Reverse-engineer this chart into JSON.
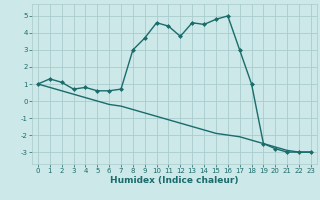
{
  "title": "",
  "xlabel": "Humidex (Indice chaleur)",
  "xlim": [
    -0.5,
    23.5
  ],
  "ylim": [
    -3.7,
    5.7
  ],
  "xticks": [
    0,
    1,
    2,
    3,
    4,
    5,
    6,
    7,
    8,
    9,
    10,
    11,
    12,
    13,
    14,
    15,
    16,
    17,
    18,
    19,
    20,
    21,
    22,
    23
  ],
  "yticks": [
    -3,
    -2,
    -1,
    0,
    1,
    2,
    3,
    4,
    5
  ],
  "bg_color": "#cce8e8",
  "grid_color": "#aacccc",
  "line_color": "#1a6b6b",
  "line1_x": [
    0,
    1,
    2,
    3,
    4,
    5,
    6,
    7,
    8,
    9,
    10,
    11,
    12,
    13,
    14,
    15,
    16,
    17,
    18,
    19,
    20,
    21,
    22,
    23
  ],
  "line1_y": [
    1.0,
    1.3,
    1.1,
    0.7,
    0.8,
    0.6,
    0.6,
    0.7,
    3.0,
    3.7,
    4.6,
    4.4,
    3.8,
    4.6,
    4.5,
    4.8,
    5.0,
    3.0,
    1.0,
    -2.5,
    -2.8,
    -3.0,
    -3.0,
    -3.0
  ],
  "line2_x": [
    0,
    1,
    2,
    3,
    4,
    5,
    6,
    7,
    8,
    9,
    10,
    11,
    12,
    13,
    14,
    15,
    16,
    17,
    18,
    19,
    20,
    21,
    22,
    23
  ],
  "line2_y": [
    1.0,
    0.8,
    0.6,
    0.4,
    0.2,
    0.0,
    -0.2,
    -0.3,
    -0.5,
    -0.7,
    -0.9,
    -1.1,
    -1.3,
    -1.5,
    -1.7,
    -1.9,
    -2.0,
    -2.1,
    -2.3,
    -2.5,
    -2.7,
    -2.9,
    -3.0,
    -3.0
  ],
  "xlabel_fontsize": 6.5,
  "tick_fontsize": 5.0,
  "line_width": 1.0,
  "marker_size": 2.5
}
